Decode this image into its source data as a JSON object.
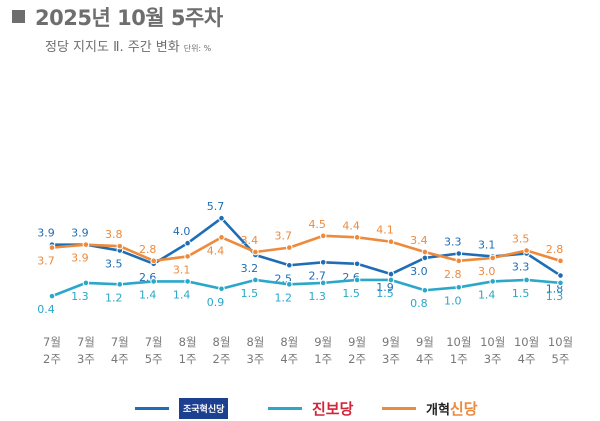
{
  "header": {
    "title": "2025년 10월 5주차",
    "subtitle": "정당 지지도 Ⅱ. 주간 변화",
    "unit": "단위: %"
  },
  "chart_data": {
    "type": "line",
    "title": "",
    "xlabel": "",
    "ylabel": "",
    "grid": false,
    "legend_position": "bottom",
    "categories": [
      [
        "7월",
        "2주"
      ],
      [
        "7월",
        "3주"
      ],
      [
        "7월",
        "4주"
      ],
      [
        "7월",
        "5주"
      ],
      [
        "8월",
        "1주"
      ],
      [
        "8월",
        "2주"
      ],
      [
        "8월",
        "3주"
      ],
      [
        "8월",
        "4주"
      ],
      [
        "9월",
        "1주"
      ],
      [
        "9월",
        "2주"
      ],
      [
        "9월",
        "3주"
      ],
      [
        "9월",
        "4주"
      ],
      [
        "10월",
        "1주"
      ],
      [
        "10월",
        "3주"
      ],
      [
        "10월",
        "4주"
      ],
      [
        "10월",
        "5주"
      ]
    ],
    "series": [
      {
        "name": "조국혁신당",
        "color": "#1f6db5",
        "values": [
          3.9,
          3.9,
          3.5,
          2.6,
          4.0,
          5.7,
          3.2,
          2.5,
          2.7,
          2.6,
          1.9,
          3.0,
          3.3,
          3.1,
          3.3,
          1.8
        ]
      },
      {
        "name": "진보당",
        "color": "#2aa7c9",
        "values": [
          0.4,
          1.3,
          1.2,
          1.4,
          1.4,
          0.9,
          1.5,
          1.2,
          1.3,
          1.5,
          1.5,
          0.8,
          1.0,
          1.4,
          1.5,
          1.3
        ]
      },
      {
        "name": "개혁신당",
        "color": "#ee8a3c",
        "values": [
          3.7,
          3.9,
          3.8,
          2.8,
          3.1,
          4.4,
          3.4,
          3.7,
          4.5,
          4.4,
          4.1,
          3.4,
          2.8,
          3.0,
          3.5,
          2.8
        ]
      }
    ]
  },
  "legend": [
    {
      "label": "조국혁신당",
      "color": "#1f6db5"
    },
    {
      "label": "진보당",
      "color": "#2aa7c9"
    },
    {
      "label": "개혁신당",
      "color": "#ee8a3c",
      "label_a": "개혁",
      "label_b": "신당"
    }
  ]
}
